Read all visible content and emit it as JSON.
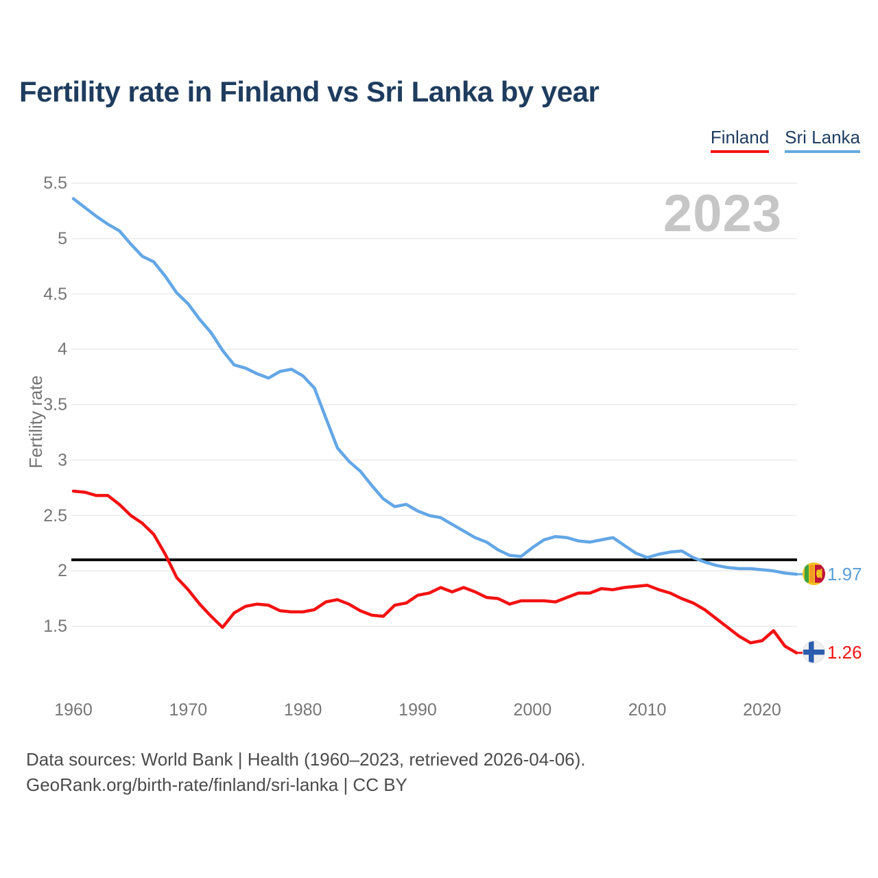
{
  "title": "Fertility rate in Finland vs Sri Lanka by year",
  "watermark": "2023",
  "legend": {
    "items": [
      {
        "label": "Finland",
        "color": "#f31212"
      },
      {
        "label": "Sri Lanka",
        "color": "#66a9e0"
      }
    ]
  },
  "y_axis": {
    "title": "Fertility rate",
    "ticks": [
      "5.5",
      "5",
      "4.5",
      "4",
      "3.5",
      "3",
      "2.5",
      "2",
      "1.5"
    ]
  },
  "x_axis": {
    "ticks": [
      "1960",
      "1970",
      "1980",
      "1990",
      "2000",
      "2010",
      "2020"
    ]
  },
  "end_labels": [
    {
      "series": "Sri Lanka",
      "value": "1.97",
      "icon": "sri-lanka-flag-icon",
      "color": "#5b9fd8"
    },
    {
      "series": "Finland",
      "value": "1.26",
      "icon": "finland-flag-icon",
      "color": "#f31212"
    }
  ],
  "footer": {
    "line1": "Data sources: World Bank | Health (1960–2023, retrieved 2026-04-06).",
    "line2": "GeoRank.org/birth-rate/finland/sri-lanka | CC BY"
  },
  "chart_data": {
    "type": "line",
    "title": "Fertility rate in Finland vs Sri Lanka by year",
    "ylabel": "Fertility rate",
    "xlabel": "",
    "ylim": [
      1.1,
      5.5
    ],
    "xlim": [
      1960,
      2023
    ],
    "grid": "horizontal",
    "legend_position": "top-right",
    "reference_line": 2.1,
    "year_watermark": "2023",
    "x": [
      1960,
      1961,
      1962,
      1963,
      1964,
      1965,
      1966,
      1967,
      1968,
      1969,
      1970,
      1971,
      1972,
      1973,
      1974,
      1975,
      1976,
      1977,
      1978,
      1979,
      1980,
      1981,
      1982,
      1983,
      1984,
      1985,
      1986,
      1987,
      1988,
      1989,
      1990,
      1991,
      1992,
      1993,
      1994,
      1995,
      1996,
      1997,
      1998,
      1999,
      2000,
      2001,
      2002,
      2003,
      2004,
      2005,
      2006,
      2007,
      2008,
      2009,
      2010,
      2011,
      2012,
      2013,
      2014,
      2015,
      2016,
      2017,
      2018,
      2019,
      2020,
      2021,
      2022,
      2023
    ],
    "series": [
      {
        "name": "Finland",
        "color": "#f31212",
        "final_value": 1.26,
        "values": [
          2.72,
          2.71,
          2.68,
          2.68,
          2.6,
          2.5,
          2.43,
          2.33,
          2.15,
          1.94,
          1.83,
          1.7,
          1.59,
          1.49,
          1.62,
          1.68,
          1.7,
          1.69,
          1.64,
          1.63,
          1.63,
          1.65,
          1.72,
          1.74,
          1.7,
          1.64,
          1.6,
          1.59,
          1.69,
          1.71,
          1.78,
          1.8,
          1.85,
          1.81,
          1.85,
          1.81,
          1.76,
          1.75,
          1.7,
          1.73,
          1.73,
          1.73,
          1.72,
          1.76,
          1.8,
          1.8,
          1.84,
          1.83,
          1.85,
          1.86,
          1.87,
          1.83,
          1.8,
          1.75,
          1.71,
          1.65,
          1.57,
          1.49,
          1.41,
          1.35,
          1.37,
          1.46,
          1.32,
          1.26
        ]
      },
      {
        "name": "Sri Lanka",
        "color": "#63a7e6",
        "final_value": 1.97,
        "values": [
          5.36,
          5.28,
          5.2,
          5.13,
          5.07,
          4.95,
          4.84,
          4.79,
          4.66,
          4.51,
          4.41,
          4.27,
          4.15,
          3.99,
          3.86,
          3.83,
          3.78,
          3.74,
          3.8,
          3.82,
          3.76,
          3.65,
          3.38,
          3.11,
          2.99,
          2.9,
          2.77,
          2.65,
          2.58,
          2.6,
          2.54,
          2.5,
          2.48,
          2.42,
          2.36,
          2.3,
          2.26,
          2.19,
          2.14,
          2.13,
          2.21,
          2.28,
          2.31,
          2.3,
          2.27,
          2.26,
          2.28,
          2.3,
          2.23,
          2.16,
          2.12,
          2.15,
          2.17,
          2.18,
          2.12,
          2.08,
          2.05,
          2.03,
          2.02,
          2.02,
          2.01,
          2.0,
          1.98,
          1.97
        ]
      }
    ]
  }
}
